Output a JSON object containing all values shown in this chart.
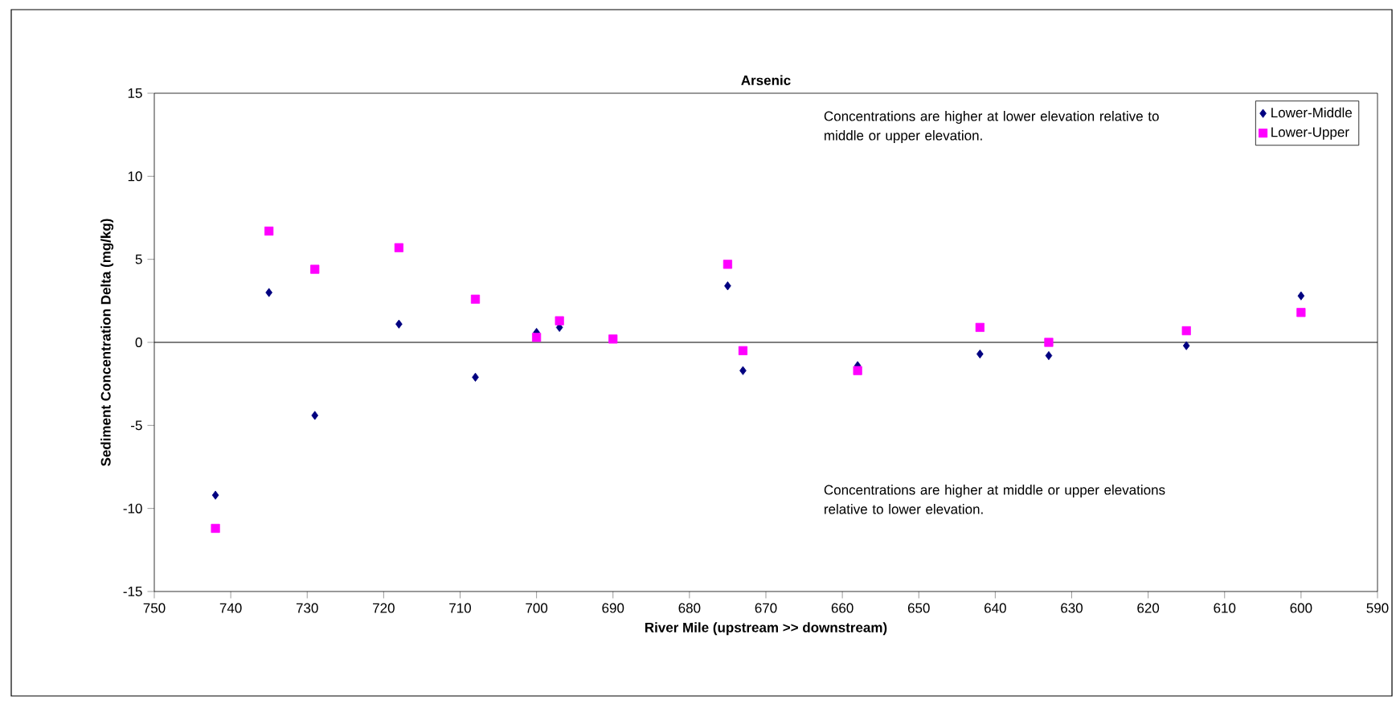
{
  "chart_data": {
    "type": "scatter",
    "title": "Arsenic",
    "xlabel": "River Mile (upstream >> downstream)",
    "ylabel": "Sediment Concentration Delta (mg/kg)",
    "annotations": [
      "Concentrations are higher at lower elevation relative to middle or upper elevation.",
      "Concentrations are higher at middle or upper elevations relative to lower elevation."
    ],
    "series": [
      {
        "name": "Lower-Middle",
        "color": "#000080",
        "marker": "diamond",
        "x": [
          742,
          735,
          729,
          718,
          708,
          700,
          697,
          675,
          673,
          658,
          642,
          633,
          615,
          600
        ],
        "values": [
          -9.2,
          3.0,
          -4.4,
          1.1,
          -2.1,
          0.6,
          0.9,
          3.4,
          -1.7,
          -1.4,
          -0.7,
          -0.8,
          -0.2,
          2.8
        ]
      },
      {
        "name": "Lower-Upper",
        "color": "#ff00ff",
        "marker": "square",
        "x": [
          742,
          735,
          729,
          718,
          708,
          700,
          697,
          690,
          675,
          673,
          658,
          642,
          633,
          615,
          600
        ],
        "values": [
          -11.2,
          6.7,
          4.4,
          5.7,
          2.6,
          0.3,
          1.3,
          0.2,
          4.7,
          -0.5,
          -1.7,
          0.9,
          0.0,
          0.7,
          1.8
        ]
      }
    ],
    "xlim": [
      750,
      590
    ],
    "xticks": [
      750,
      740,
      730,
      720,
      710,
      700,
      690,
      680,
      670,
      660,
      650,
      640,
      630,
      620,
      610,
      600,
      590
    ],
    "ylim": [
      -15,
      15
    ],
    "yticks": [
      -15,
      -10,
      -5,
      0,
      5,
      10,
      15
    ],
    "ref_lines": [
      {
        "axis": "y",
        "value": 0,
        "color": "#000000"
      }
    ],
    "grid": false,
    "legend": "top right"
  }
}
